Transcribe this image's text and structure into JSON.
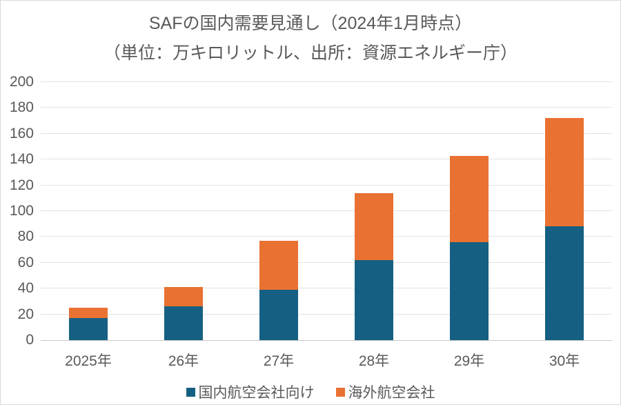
{
  "chart_data": {
    "type": "bar",
    "stacked": true,
    "title": "SAFの国内需要見通し（2024年1月時点）",
    "subtitle": "（単位：万キロリットル、出所：資源エネルギー庁）",
    "categories": [
      "2025年",
      "26年",
      "27年",
      "28年",
      "29年",
      "30年"
    ],
    "series": [
      {
        "name": "国内航空会社向け",
        "color": "#156082",
        "values": [
          17,
          26,
          39,
          62,
          76,
          88
        ]
      },
      {
        "name": "海外航空会社",
        "color": "#E97132",
        "values": [
          8,
          15,
          38,
          52,
          67,
          84
        ]
      }
    ],
    "totals": [
      25,
      41,
      77,
      114,
      143,
      172
    ],
    "xlabel": "",
    "ylabel": "",
    "ylim": [
      0,
      200
    ],
    "ytick_step": 20,
    "yticks": [
      0,
      20,
      40,
      60,
      80,
      100,
      120,
      140,
      160,
      180,
      200
    ],
    "grid": true,
    "legend_position": "bottom"
  },
  "colors": {
    "domestic_bar": "#156082",
    "overseas_bar": "#E97132",
    "gridline": "#E2E2E2",
    "axis_line": "#C9C9C9",
    "text": "#595959",
    "frame_border": "#D9D9D9",
    "background": "#FFFFFF"
  }
}
